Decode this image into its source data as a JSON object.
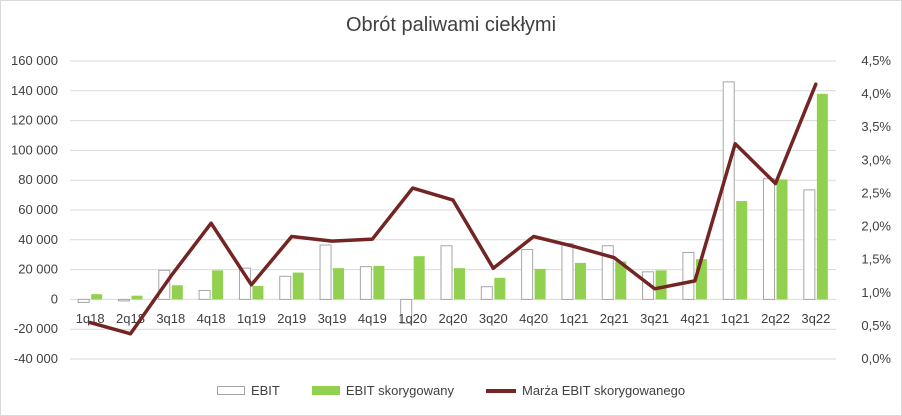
{
  "chart_data": {
    "type": "bar+line",
    "title": "Obrót paliwami ciekłymi",
    "categories": [
      "1q18",
      "2q18",
      "3q18",
      "4q18",
      "1q19",
      "2q19",
      "3q19",
      "4q19",
      "1q20",
      "2q20",
      "3q20",
      "4q20",
      "1q21",
      "2q21",
      "3q21",
      "4q21",
      "1q21",
      "2q22",
      "3q22"
    ],
    "series": [
      {
        "name": "EBIT",
        "kind": "bar",
        "axis": "left",
        "values": [
          -2000,
          -1000,
          19500,
          6000,
          21000,
          15500,
          36500,
          22000,
          -16000,
          36000,
          8500,
          33500,
          37500,
          36000,
          18500,
          31500,
          146000,
          81000,
          73500
        ]
      },
      {
        "name": "EBIT skorygowany",
        "kind": "bar",
        "axis": "left",
        "values": [
          3500,
          2500,
          9500,
          19500,
          9000,
          18000,
          21000,
          22500,
          29000,
          21000,
          14500,
          20500,
          24500,
          25500,
          19500,
          27000,
          66000,
          80500,
          138000
        ]
      },
      {
        "name": "Marża EBIT skorygowanego",
        "kind": "line",
        "axis": "right",
        "values": [
          0.55,
          0.38,
          1.25,
          2.05,
          1.12,
          1.85,
          1.78,
          1.81,
          2.58,
          2.4,
          1.37,
          1.85,
          1.7,
          1.53,
          1.06,
          1.18,
          3.25,
          2.65,
          4.15
        ]
      }
    ],
    "y_left": {
      "min": -40000,
      "max": 160000,
      "step": 20000,
      "tick_labels": [
        "-40 000",
        "-20 000",
        "0",
        "20 000",
        "40 000",
        "60 000",
        "80 000",
        "100 000",
        "120 000",
        "140 000",
        "160 000"
      ]
    },
    "y_right": {
      "min": 0,
      "max": 4.5,
      "step": 0.5,
      "tick_labels": [
        "0,0%",
        "0,5%",
        "1,0%",
        "1,5%",
        "2,0%",
        "2,5%",
        "3,0%",
        "3,5%",
        "4,0%",
        "4,5%"
      ]
    },
    "gridlines": true,
    "legend_position": "bottom",
    "colors": {
      "ebit_fill": "#ffffff",
      "ebit_stroke": "#a6a6a6",
      "ebit_adj": "#92d050",
      "margin_line": "#722523",
      "grid": "#d9d9d9",
      "text": "#404040"
    }
  }
}
